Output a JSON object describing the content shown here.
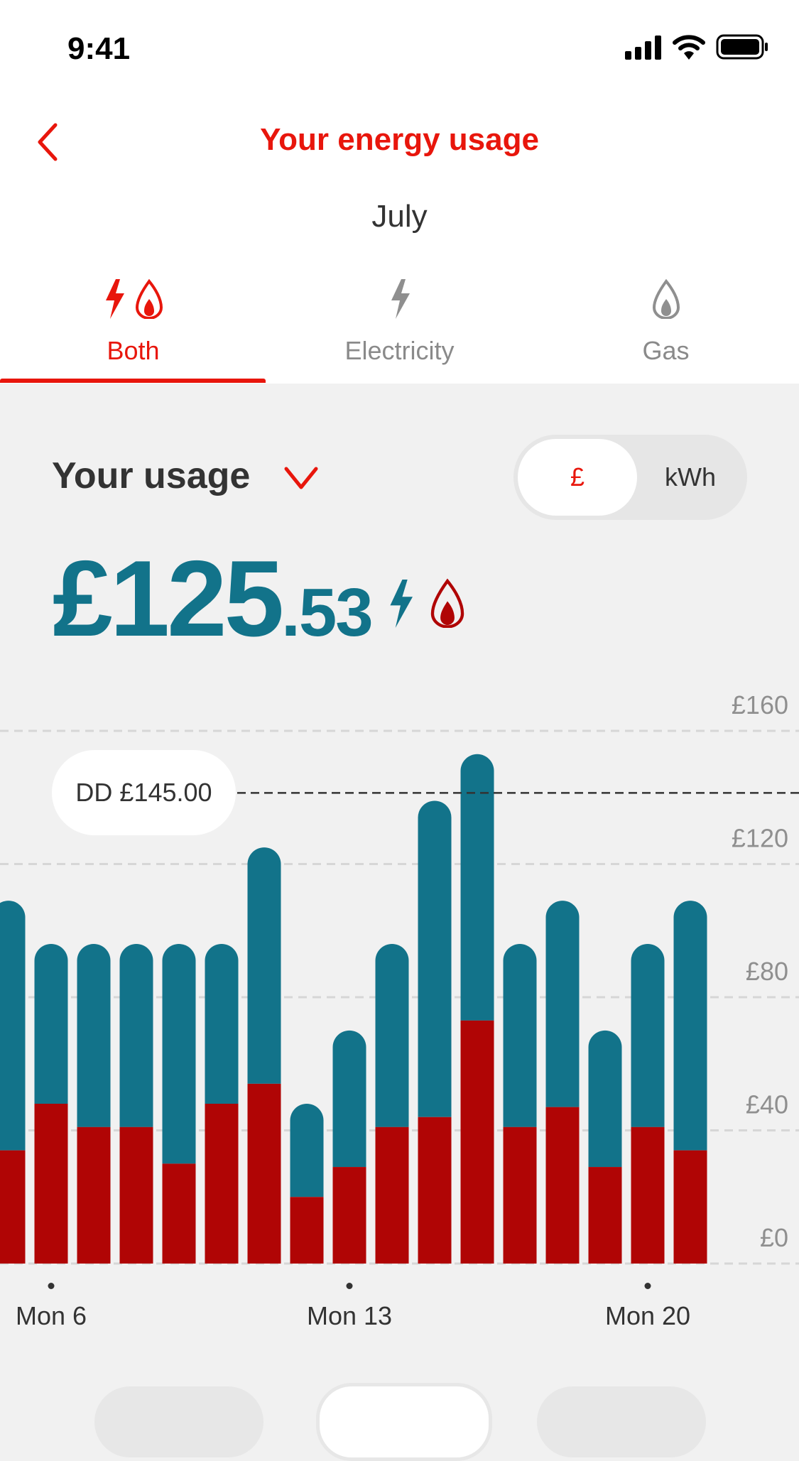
{
  "status_bar": {
    "time": "9:41",
    "icons": [
      "signal-icon",
      "wifi-icon",
      "battery-icon"
    ]
  },
  "header": {
    "title": "Your energy usage",
    "back_icon": "chevron-left-icon",
    "month": "July"
  },
  "tabs": [
    {
      "label": "Both",
      "icons": [
        "bolt-icon",
        "flame-icon"
      ],
      "active": true
    },
    {
      "label": "Electricity",
      "icons": [
        "bolt-icon"
      ],
      "active": false
    },
    {
      "label": "Gas",
      "icons": [
        "flame-icon"
      ],
      "active": false
    }
  ],
  "usage": {
    "title": "Your usage",
    "dropdown_icon": "chevron-down-icon",
    "toggle": {
      "options": [
        "£",
        "kWh"
      ],
      "selected": "£"
    },
    "amount_main": "£125",
    "amount_decimal": ".53"
  },
  "colors": {
    "accent": "#e8160c",
    "electricity": "#12738a",
    "gas": "#b00505",
    "background": "#f1f1f1"
  },
  "chart_data": {
    "type": "bar",
    "stacked": true,
    "categories": [
      "5",
      "6",
      "7",
      "8",
      "9",
      "10",
      "11",
      "12",
      "13",
      "14",
      "15",
      "16",
      "17",
      "18",
      "19",
      "20",
      "21"
    ],
    "series": [
      {
        "values": [
          34,
          48,
          41,
          41,
          30,
          48,
          54,
          20,
          29,
          41,
          44,
          73,
          41,
          47,
          29,
          41,
          34
        ]
      },
      {
        "values": [
          75,
          48,
          55,
          55,
          66,
          48,
          71,
          28,
          41,
          55,
          95,
          80,
          55,
          62,
          41,
          55,
          75
        ]
      }
    ],
    "y_ticks": [
      "£0",
      "£40",
      "£80",
      "£120",
      "£160"
    ],
    "y_tick_values": [
      0,
      40,
      80,
      120,
      160
    ],
    "ylim": [
      0,
      160
    ],
    "x_labels": [
      {
        "category": "6",
        "label": "Mon 6"
      },
      {
        "category": "13",
        "label": "Mon 13"
      },
      {
        "category": "20",
        "label": "Mon 20"
      }
    ],
    "reference_line": {
      "label": "DD £145.00",
      "value": 145
    },
    "grid": true
  }
}
